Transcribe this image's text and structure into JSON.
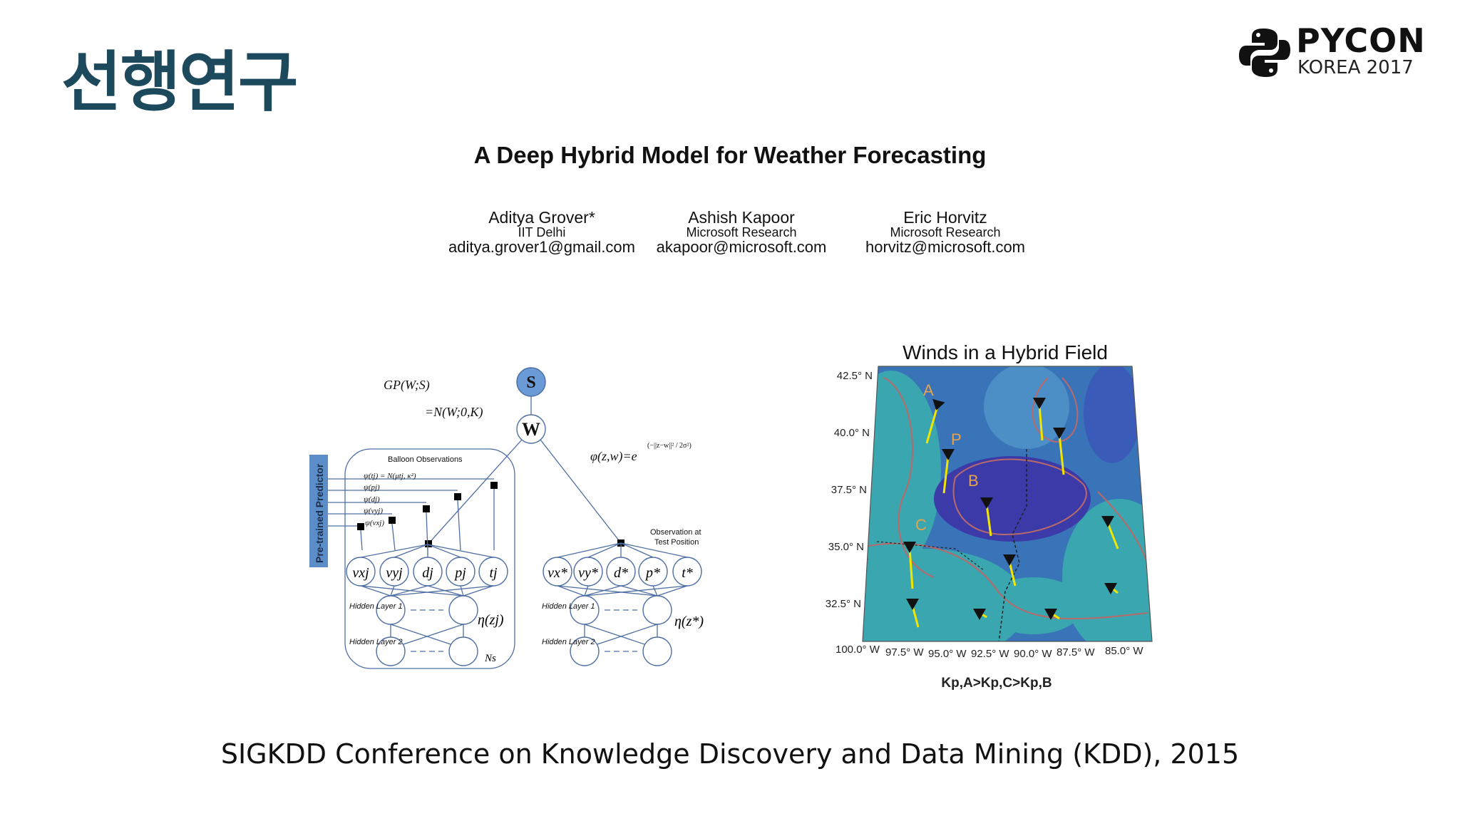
{
  "slide": {
    "title": "선행연구",
    "caption": "SIGKDD Conference on Knowledge Discovery and Data Mining (KDD), 2015"
  },
  "logo": {
    "line1": "PYCON",
    "line2": "KOREA 2017"
  },
  "paper": {
    "title": "A Deep Hybrid Model for Weather Forecasting",
    "authors": [
      {
        "name": "Aditya Grover*",
        "affiliation": "IIT Delhi",
        "email": "aditya.grover1@gmail.com"
      },
      {
        "name": "Ashish Kapoor",
        "affiliation": "Microsoft Research",
        "email": "akapoor@microsoft.com"
      },
      {
        "name": "Eric Horvitz",
        "affiliation": "Microsoft Research",
        "email": "horvitz@microsoft.com"
      }
    ]
  },
  "model_figure": {
    "side_label": "Pre-trained Predictor",
    "gp_label": "GP(W;S)",
    "normal_label": "=N(W;0,K)",
    "node_s": "S",
    "node_w": "W",
    "kernel_label": "φ(z,w)=e",
    "kernel_exp": "(−||z−w||² / 2σ²)",
    "balloon_title": "Balloon Observations",
    "psi_labels": [
      "ψ(tj) = N(μtj, κ²)",
      "ψ(pj)",
      "ψ(dj)",
      "ψ(vyj)",
      "ψ(vxj)"
    ],
    "obs_nodes": [
      "vxj",
      "vyj",
      "dj",
      "pj",
      "tj"
    ],
    "test_nodes": [
      "vx*",
      "vy*",
      "d*",
      "p*",
      "t*"
    ],
    "test_title_1": "Observation at",
    "test_title_2": "Test Position",
    "hidden1": "Hidden Layer 1",
    "hidden2": "Hidden Layer 2",
    "eta_j": "η(zj)",
    "eta_star": "η(z*)",
    "plate": "Ns"
  },
  "map_figure": {
    "title": "Winds in a Hybrid Field",
    "lat_labels": [
      "42.5° N",
      "40.0° N",
      "37.5° N",
      "35.0° N",
      "32.5° N"
    ],
    "lon_labels": [
      "100.0° W",
      "97.5° W",
      "95.0° W",
      "92.5° W",
      "90.0° W",
      "87.5° W",
      "85.0° W"
    ],
    "point_labels": [
      "A",
      "P",
      "B",
      "C"
    ],
    "formula": "Kp,A>Kp,C>Kp,B",
    "colors": {
      "field": "#3a74b8",
      "dark": "#3b3aa8",
      "teal": "#3aa7b0",
      "arrow": "#f2e600",
      "contour": "#b86a6a"
    }
  }
}
